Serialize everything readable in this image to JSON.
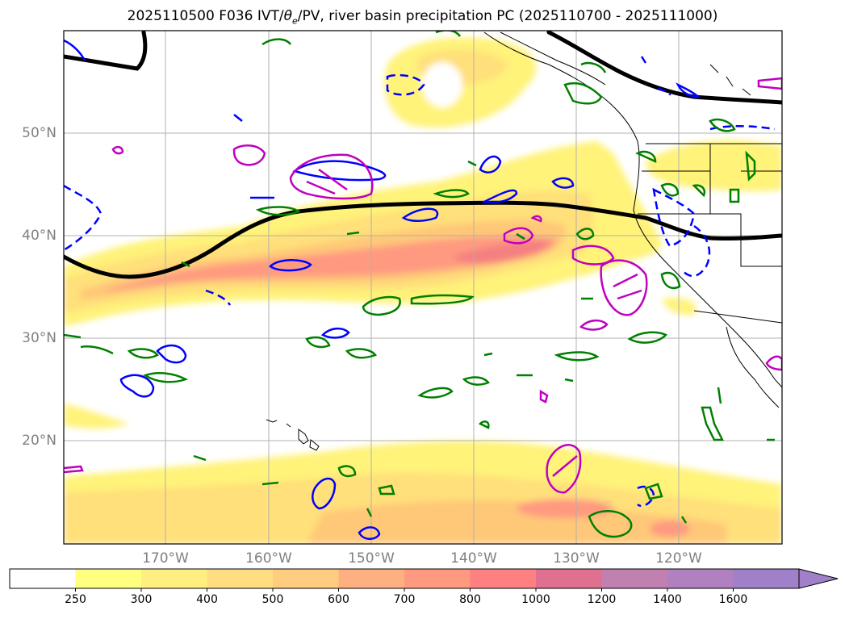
{
  "title": {
    "prefix": "2025110500 F036 IVT/",
    "theta_symbol": "θ",
    "theta_sub": "e",
    "suffix": "/PV, river basin precipitation PC (2025110700 - 2025111000)"
  },
  "map": {
    "lat_labels": [
      "50°N",
      "40°N",
      "30°N",
      "20°N"
    ],
    "lon_labels": [
      "170°W",
      "160°W",
      "150°W",
      "140°W",
      "130°W",
      "120°W"
    ],
    "lat_ticks": [
      50,
      40,
      30,
      20
    ],
    "lon_ticks": [
      -170,
      -160,
      -150,
      -140,
      -130,
      -120
    ],
    "extent": {
      "lon_min": -180,
      "lon_max": -110,
      "lat_min": 10,
      "lat_max": 60
    },
    "grid": true,
    "colors": {
      "ocean": "#ffffff",
      "coastline": "#000000",
      "thick_contour": "#000000",
      "theta_e_contour": "#0000ff",
      "precip_contour": "#008000",
      "pv_contour": "#c000c0"
    }
  },
  "colorbar": {
    "levels": [
      "250",
      "300",
      "400",
      "500",
      "600",
      "700",
      "800",
      "1000",
      "1200",
      "1400",
      "1600"
    ],
    "colors": [
      "#ffffff",
      "#ffff80",
      "#ffee80",
      "#ffdd80",
      "#ffcc80",
      "#ffb080",
      "#ff9980",
      "#ff8080",
      "#e07090",
      "#c080b0",
      "#b080c0",
      "#a080c8"
    ],
    "extend": "max"
  }
}
